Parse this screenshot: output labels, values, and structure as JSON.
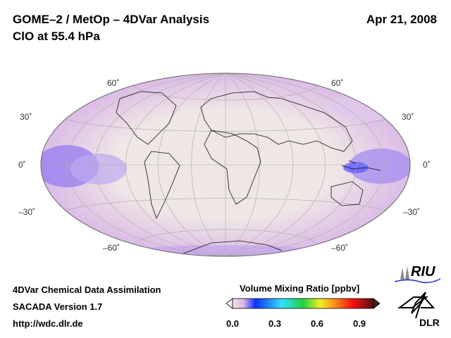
{
  "header": {
    "title": "GOME–2 / MetOp – 4DVar Analysis",
    "subtitle": "ClO at 55.4 hPa",
    "date": "Apr 21, 2008"
  },
  "map": {
    "projection": "Hammer",
    "lat_labels_left": [
      "60˚",
      "30˚",
      "0˚",
      "–30˚",
      "–60˚"
    ],
    "lat_labels_right": [
      "60˚",
      "30˚",
      "0˚",
      "–30˚",
      "–60˚"
    ]
  },
  "colorbar": {
    "title": "Volume Mixing Ratio [ppbv]",
    "ticks": [
      "0.0",
      "0.3",
      "0.6",
      "0.9"
    ],
    "range": [
      0,
      1.0
    ],
    "colors": [
      "#f3e6e6",
      "#d6b6e6",
      "#1030ff",
      "#30e0ff",
      "#20d040",
      "#f0f020",
      "#ff9020",
      "#ff1010",
      "#501010"
    ]
  },
  "footer": {
    "line1": "4DVar Chemical Data Assimilation",
    "line2": "SACADA Version 1.7",
    "line3": "http://wdc.dlr.de"
  },
  "logos": {
    "riu": "RIU",
    "dlr": "DLR"
  }
}
